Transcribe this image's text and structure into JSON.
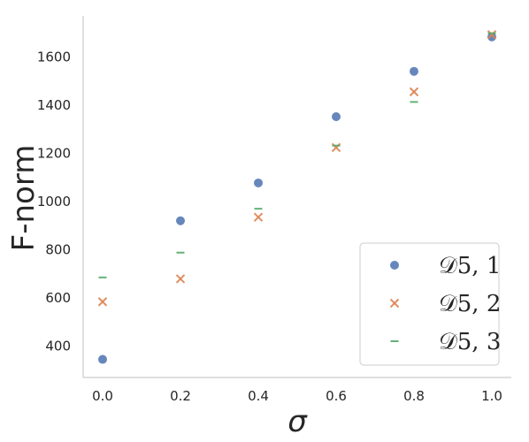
{
  "chart_data": {
    "type": "scatter",
    "xlabel": "σ",
    "ylabel": "F-norm",
    "xlim": [
      -0.05,
      1.05
    ],
    "ylim": [
      270,
      1770
    ],
    "x_ticks": [
      "0.0",
      "0.2",
      "0.4",
      "0.6",
      "0.8",
      "1.0"
    ],
    "y_ticks": [
      "400",
      "600",
      "800",
      "1000",
      "1200",
      "1400",
      "1600"
    ],
    "grid": false,
    "legend_position": "bottom-right",
    "series": [
      {
        "name": "𝒟5, 1",
        "marker": "circle",
        "color": "#4c72b0",
        "x": [
          0.0,
          0.2,
          0.4,
          0.6,
          0.8,
          1.0
        ],
        "y": [
          345,
          920,
          1077,
          1352,
          1540,
          1683
        ]
      },
      {
        "name": "𝒟5, 2",
        "marker": "x",
        "color": "#dd8452",
        "x": [
          0.0,
          0.2,
          0.4,
          0.6,
          0.8,
          1.0
        ],
        "y": [
          584,
          679,
          935,
          1224,
          1455,
          1692
        ]
      },
      {
        "name": "𝒟5, 3",
        "marker": "dash",
        "color": "#55a868",
        "x": [
          0.0,
          0.2,
          0.4,
          0.6,
          0.8,
          1.0
        ],
        "y": [
          685,
          788,
          970,
          1232,
          1413,
          1698
        ]
      }
    ]
  }
}
